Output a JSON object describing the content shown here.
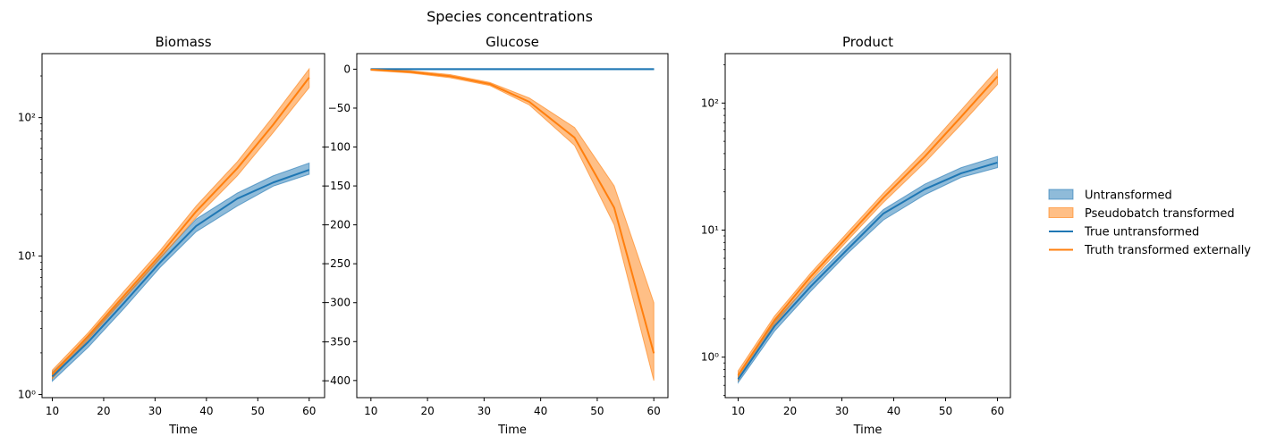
{
  "figure": {
    "suptitle": "Species concentrations",
    "legend": {
      "placement": "right",
      "entries": [
        {
          "label": "Untransformed",
          "kind": "band",
          "color": "#1f77b4"
        },
        {
          "label": "Pseudobatch transformed",
          "kind": "band",
          "color": "#ff7f0e"
        },
        {
          "label": "True untransformed",
          "kind": "line",
          "color": "#1f77b4"
        },
        {
          "label": "Truth transformed externally",
          "kind": "line",
          "color": "#ff7f0e"
        }
      ]
    }
  },
  "chart_data": [
    {
      "type": "line",
      "title": "Biomass",
      "xlabel": "Time",
      "ylabel": "",
      "yscale": "log",
      "xlim": [
        8,
        63
      ],
      "ylim": [
        0.95,
        290
      ],
      "xticks": [
        10,
        20,
        30,
        40,
        50,
        60
      ],
      "yticks": [
        {
          "value": 1,
          "label": "10⁰"
        },
        {
          "value": 10,
          "label": "10¹"
        },
        {
          "value": 100,
          "label": "10²"
        }
      ],
      "x": [
        10,
        17,
        24,
        31,
        38,
        46,
        53,
        60
      ],
      "series": [
        {
          "legend_index": 0,
          "kind": "band",
          "lower": [
            1.25,
            2.2,
            4.2,
            8.3,
            15,
            23,
            32,
            39
          ],
          "upper": [
            1.45,
            2.6,
            5.0,
            9.8,
            18.5,
            28.5,
            38,
            47
          ]
        },
        {
          "legend_index": 1,
          "kind": "band",
          "lower": [
            1.3,
            2.5,
            4.9,
            9.6,
            19,
            38,
            78,
            165
          ],
          "upper": [
            1.5,
            2.8,
            5.6,
            11,
            23,
            48,
            102,
            225
          ]
        },
        {
          "legend_index": 2,
          "kind": "line",
          "values": [
            1.35,
            2.4,
            4.6,
            9.0,
            16.5,
            26,
            34,
            42
          ]
        },
        {
          "legend_index": 3,
          "kind": "line",
          "values": [
            1.4,
            2.65,
            5.2,
            10.2,
            21,
            43,
            89,
            195
          ]
        }
      ]
    },
    {
      "type": "line",
      "title": "Glucose",
      "xlabel": "Time",
      "ylabel": "",
      "yscale": "linear",
      "xlim": [
        7.5,
        62.5
      ],
      "ylim": [
        -422,
        20
      ],
      "xticks": [
        10,
        20,
        30,
        40,
        50,
        60
      ],
      "yticks": [
        {
          "value": 0,
          "label": "0"
        },
        {
          "value": -50,
          "label": "−50"
        },
        {
          "value": -100,
          "label": "−100"
        },
        {
          "value": -150,
          "label": "−150"
        },
        {
          "value": -200,
          "label": "−200"
        },
        {
          "value": -250,
          "label": "−250"
        },
        {
          "value": -300,
          "label": "−300"
        },
        {
          "value": -350,
          "label": "−350"
        },
        {
          "value": -400,
          "label": "−400"
        }
      ],
      "x": [
        10,
        17,
        24,
        31,
        38,
        46,
        53,
        60
      ],
      "series": [
        {
          "legend_index": 0,
          "kind": "band",
          "lower": [
            -0.6,
            -0.6,
            -0.6,
            -0.6,
            -0.6,
            -0.6,
            -0.6,
            -0.6
          ],
          "upper": [
            0.6,
            0.6,
            0.6,
            0.6,
            0.6,
            0.6,
            0.6,
            0.6
          ]
        },
        {
          "legend_index": 1,
          "kind": "band",
          "lower": [
            -1.5,
            -5,
            -11,
            -21,
            -46,
            -98,
            -200,
            -400
          ],
          "upper": [
            0,
            -2,
            -7,
            -17,
            -37,
            -75,
            -150,
            -300
          ]
        },
        {
          "legend_index": 2,
          "kind": "line",
          "values": [
            0,
            0,
            0,
            0,
            0,
            0,
            0,
            0
          ]
        },
        {
          "legend_index": 3,
          "kind": "line",
          "values": [
            -0.5,
            -3.5,
            -9,
            -19,
            -42,
            -88,
            -178,
            -365
          ]
        }
      ]
    },
    {
      "type": "line",
      "title": "Product",
      "xlabel": "Time",
      "ylabel": "",
      "yscale": "log",
      "xlim": [
        7.5,
        62.5
      ],
      "ylim": [
        0.48,
        245
      ],
      "xticks": [
        10,
        20,
        30,
        40,
        50,
        60
      ],
      "yticks": [
        {
          "value": 1,
          "label": "10⁰"
        },
        {
          "value": 10,
          "label": "10¹"
        },
        {
          "value": 100,
          "label": "10²"
        }
      ],
      "x": [
        10,
        17,
        24,
        31,
        38,
        46,
        53,
        60
      ],
      "series": [
        {
          "legend_index": 0,
          "kind": "band",
          "lower": [
            0.63,
            1.6,
            3.3,
            6.5,
            12,
            19,
            26,
            31
          ],
          "upper": [
            0.72,
            1.9,
            3.9,
            7.6,
            14.5,
            23,
            31,
            38
          ]
        },
        {
          "legend_index": 1,
          "kind": "band",
          "lower": [
            0.66,
            1.8,
            4.0,
            8.2,
            16.5,
            34,
            68,
            140
          ],
          "upper": [
            0.78,
            2.1,
            4.6,
            9.5,
            19.5,
            42,
            88,
            185
          ]
        },
        {
          "legend_index": 2,
          "kind": "line",
          "values": [
            0.67,
            1.75,
            3.6,
            7.0,
            13.5,
            21,
            28,
            34
          ]
        },
        {
          "legend_index": 3,
          "kind": "line",
          "values": [
            0.72,
            1.95,
            4.3,
            8.8,
            18,
            38,
            78,
            162
          ]
        }
      ]
    }
  ]
}
